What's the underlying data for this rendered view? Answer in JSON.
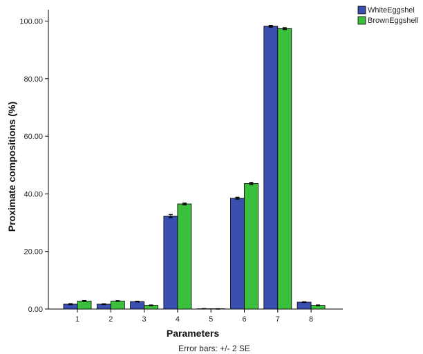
{
  "chart_data": {
    "type": "bar",
    "xlabel": "Parameters",
    "ylabel": "Proximate compositions (%)",
    "footnote": "Error bars: +/- 2 SE",
    "categories": [
      "1",
      "2",
      "3",
      "4",
      "5",
      "6",
      "7",
      "8"
    ],
    "ylim": [
      0,
      100
    ],
    "yticks": [
      "0.00",
      "20.00",
      "40.00",
      "60.00",
      "80.00",
      "100.00"
    ],
    "legend_position": "top-right",
    "series": [
      {
        "name": "WhiteEggshel",
        "color": "#3a4fb0",
        "values": [
          1.7,
          1.7,
          2.6,
          32.3,
          0.1,
          38.5,
          98.2,
          2.4
        ],
        "error": [
          0.15,
          0.1,
          0.1,
          0.5,
          0.05,
          0.3,
          0.3,
          0.1
        ]
      },
      {
        "name": "BrownEggshell",
        "color": "#3cbf3c",
        "values": [
          2.8,
          2.8,
          1.3,
          36.5,
          0.05,
          43.6,
          97.4,
          1.3
        ],
        "error": [
          0.15,
          0.1,
          0.1,
          0.3,
          0.05,
          0.4,
          0.3,
          0.1
        ]
      }
    ]
  }
}
